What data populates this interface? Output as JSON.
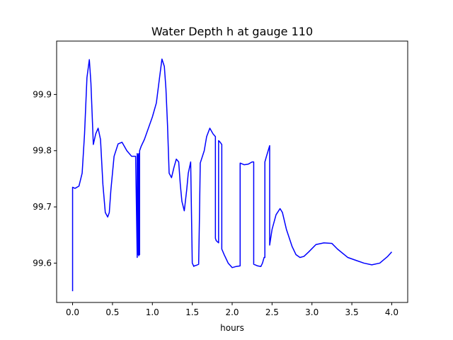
{
  "chart_data": {
    "type": "line",
    "title": "Water Depth h at gauge 110",
    "xlabel": "hours",
    "ylabel": "",
    "xlim": [
      -0.2,
      4.2
    ],
    "ylim": [
      99.53,
      99.995
    ],
    "xticks": [
      0.0,
      0.5,
      1.0,
      1.5,
      2.0,
      2.5,
      3.0,
      3.5,
      4.0
    ],
    "xtick_labels": [
      "0.0",
      "0.5",
      "1.0",
      "1.5",
      "2.0",
      "2.5",
      "3.0",
      "3.5",
      "4.0"
    ],
    "yticks": [
      99.6,
      99.7,
      99.8,
      99.9
    ],
    "ytick_labels": [
      "99.6",
      "99.7",
      "99.8",
      "99.9"
    ],
    "grid": false,
    "legend": "none",
    "series": [
      {
        "color": "#0000ff",
        "x": [
          0.0,
          0.0,
          0.03,
          0.08,
          0.12,
          0.15,
          0.18,
          0.21,
          0.23,
          0.26,
          0.29,
          0.32,
          0.35,
          0.38,
          0.41,
          0.44,
          0.46,
          0.48,
          0.52,
          0.57,
          0.62,
          0.68,
          0.74,
          0.79,
          0.81,
          0.81,
          0.82,
          0.82,
          0.83,
          0.83,
          0.84,
          0.84,
          0.86,
          0.9,
          0.95,
          1.0,
          1.05,
          1.09,
          1.12,
          1.15,
          1.17,
          1.19,
          1.21,
          1.24,
          1.27,
          1.3,
          1.33,
          1.35,
          1.37,
          1.4,
          1.43,
          1.45,
          1.48,
          1.5,
          1.52,
          1.52,
          1.55,
          1.58,
          1.59,
          1.6,
          1.65,
          1.68,
          1.72,
          1.76,
          1.79,
          1.79,
          1.8,
          1.83,
          1.83,
          1.85,
          1.87,
          1.87,
          1.9,
          1.95,
          2.0,
          2.05,
          2.1,
          2.1,
          2.15,
          2.2,
          2.25,
          2.27,
          2.27,
          2.32,
          2.36,
          2.38,
          2.4,
          2.41,
          2.41,
          2.43,
          2.47,
          2.47,
          2.5,
          2.55,
          2.6,
          2.63,
          2.68,
          2.75,
          2.8,
          2.85,
          2.9,
          2.96,
          3.05,
          3.15,
          3.25,
          3.32,
          3.45,
          3.55,
          3.65,
          3.75,
          3.85,
          3.95,
          4.0
        ],
        "y": [
          99.55,
          99.735,
          99.733,
          99.737,
          99.76,
          99.83,
          99.93,
          99.962,
          99.92,
          99.811,
          99.83,
          99.84,
          99.82,
          99.74,
          99.69,
          99.682,
          99.69,
          99.73,
          99.79,
          99.812,
          99.815,
          99.8,
          99.79,
          99.79,
          99.61,
          99.795,
          99.615,
          99.793,
          99.613,
          99.795,
          99.615,
          99.8,
          99.808,
          99.82,
          99.84,
          99.86,
          99.885,
          99.93,
          99.963,
          99.95,
          99.91,
          99.845,
          99.76,
          99.752,
          99.77,
          99.785,
          99.78,
          99.74,
          99.71,
          99.693,
          99.73,
          99.76,
          99.78,
          99.6,
          99.594,
          99.595,
          99.596,
          99.598,
          99.68,
          99.778,
          99.8,
          99.825,
          99.84,
          99.83,
          99.825,
          99.644,
          99.64,
          99.636,
          99.818,
          99.815,
          99.811,
          99.625,
          99.615,
          99.6,
          99.592,
          99.594,
          99.595,
          99.778,
          99.775,
          99.776,
          99.78,
          99.78,
          99.598,
          99.595,
          99.594,
          99.6,
          99.61,
          99.61,
          99.78,
          99.79,
          99.809,
          99.632,
          99.66,
          99.686,
          99.697,
          99.69,
          99.66,
          99.63,
          99.615,
          99.61,
          99.612,
          99.62,
          99.633,
          99.636,
          99.635,
          99.625,
          99.61,
          99.605,
          99.6,
          99.597,
          99.6,
          99.612,
          99.62
        ]
      }
    ]
  }
}
